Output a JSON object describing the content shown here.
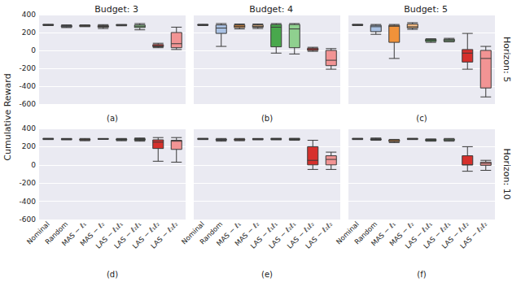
{
  "chart_data": [
    {
      "type": "boxplot",
      "title": "Budget: 3",
      "xlabel": "(a)",
      "ylabel": "Cumulative Reward",
      "categories": [
        "Nominal",
        "Random",
        "MAS − ℓ₁",
        "MAS − ℓ₂",
        "LAS − ℓ₁ℓ₁",
        "LAS − ℓ₂ℓ₁",
        "LAS − ℓ₁ℓ₂",
        "LAS − ℓ₂ℓ₂"
      ],
      "colors": [
        "#7590c2",
        "#a9c1e3",
        "#f0923a",
        "#f5bd86",
        "#49a84c",
        "#8fd08f",
        "#d6302c",
        "#f29494"
      ],
      "values": [
        [
          278,
          282,
          285,
          288,
          292
        ],
        [
          255,
          262,
          270,
          278,
          285
        ],
        [
          265,
          270,
          275,
          280,
          285
        ],
        [
          245,
          258,
          268,
          278,
          288
        ],
        [
          275,
          280,
          283,
          287,
          290
        ],
        [
          230,
          255,
          270,
          285,
          300
        ],
        [
          30,
          40,
          50,
          65,
          80
        ],
        [
          10,
          30,
          75,
          200,
          260
        ]
      ],
      "ylim": [
        -600,
        400
      ],
      "yticks": [
        -600,
        -400,
        -200,
        0,
        200,
        400
      ],
      "grid": true,
      "tick_labels": "y"
    },
    {
      "type": "boxplot",
      "title": "Budget: 4",
      "xlabel": "(b)",
      "categories": [
        "Nominal",
        "Random",
        "MAS − ℓ₁",
        "MAS − ℓ₂",
        "LAS − ℓ₁ℓ₁",
        "LAS − ℓ₂ℓ₁",
        "LAS − ℓ₁ℓ₂",
        "LAS − ℓ₂ℓ₂"
      ],
      "colors": [
        "#7590c2",
        "#a9c1e3",
        "#f0923a",
        "#f5bd86",
        "#49a84c",
        "#8fd08f",
        "#d6302c",
        "#f29494"
      ],
      "values": [
        [
          278,
          282,
          285,
          288,
          292
        ],
        [
          45,
          190,
          250,
          285,
          300
        ],
        [
          240,
          255,
          270,
          285,
          295
        ],
        [
          245,
          258,
          270,
          285,
          295
        ],
        [
          -30,
          40,
          260,
          290,
          300
        ],
        [
          -40,
          30,
          240,
          290,
          300
        ],
        [
          -10,
          0,
          10,
          25,
          35
        ],
        [
          -210,
          -170,
          -110,
          0,
          20
        ]
      ],
      "ylim": [
        -600,
        400
      ],
      "yticks": [
        -600,
        -400,
        -200,
        0,
        200,
        400
      ],
      "grid": true,
      "tick_labels": false
    },
    {
      "type": "boxplot",
      "title": "Budget: 5",
      "xlabel": "(c)",
      "annotation": "Horizon: 5",
      "categories": [
        "Nominal",
        "Random",
        "MAS − ℓ₁",
        "MAS − ℓ₂",
        "LAS − ℓ₁ℓ₁",
        "LAS − ℓ₂ℓ₁",
        "LAS − ℓ₁ℓ₂",
        "LAS − ℓ₂ℓ₂"
      ],
      "colors": [
        "#7590c2",
        "#a9c1e3",
        "#f0923a",
        "#f5bd86",
        "#49a84c",
        "#8fd08f",
        "#d6302c",
        "#f29494"
      ],
      "values": [
        [
          278,
          282,
          285,
          288,
          292
        ],
        [
          180,
          210,
          265,
          280,
          290
        ],
        [
          -90,
          90,
          270,
          280,
          290
        ],
        [
          235,
          250,
          265,
          295,
          310
        ],
        [
          90,
          100,
          115,
          125,
          130
        ],
        [
          95,
          100,
          115,
          125,
          135
        ],
        [
          -210,
          -130,
          -30,
          10,
          190
        ],
        [
          -520,
          -420,
          -90,
          0,
          45
        ]
      ],
      "ylim": [
        -600,
        400
      ],
      "yticks": [
        -600,
        -400,
        -200,
        0,
        200,
        400
      ],
      "grid": true,
      "tick_labels": false
    },
    {
      "type": "boxplot",
      "xlabel": "(d)",
      "categories": [
        "Nominal",
        "Random",
        "MAS − ℓ₁",
        "MAS − ℓ₂",
        "LAS − ℓ₁ℓ₁",
        "LAS − ℓ₂ℓ₁",
        "LAS − ℓ₁ℓ₂",
        "LAS − ℓ₂ℓ₂"
      ],
      "colors": [
        "#7590c2",
        "#a9c1e3",
        "#f0923a",
        "#f5bd86",
        "#49a84c",
        "#8fd08f",
        "#d6302c",
        "#f29494"
      ],
      "values": [
        [
          278,
          282,
          285,
          288,
          292
        ],
        [
          275,
          280,
          283,
          286,
          290
        ],
        [
          265,
          272,
          278,
          283,
          290
        ],
        [
          280,
          283,
          285,
          287,
          290
        ],
        [
          265,
          272,
          280,
          285,
          290
        ],
        [
          260,
          270,
          280,
          288,
          295
        ],
        [
          40,
          180,
          250,
          275,
          300
        ],
        [
          30,
          170,
          260,
          270,
          300
        ]
      ],
      "ylim": [
        -600,
        400
      ],
      "yticks": [
        -600,
        -400,
        -200,
        0,
        200,
        400
      ],
      "grid": true,
      "tick_labels": true
    },
    {
      "type": "boxplot",
      "xlabel": "(e)",
      "categories": [
        "Nominal",
        "Random",
        "MAS − ℓ₁",
        "MAS − ℓ₂",
        "LAS − ℓ₁ℓ₁",
        "LAS − ℓ₂ℓ₁",
        "LAS − ℓ₁ℓ₂",
        "LAS − ℓ₂ℓ₂"
      ],
      "colors": [
        "#7590c2",
        "#a9c1e3",
        "#f0923a",
        "#f5bd86",
        "#49a84c",
        "#8fd08f",
        "#d6302c",
        "#f29494"
      ],
      "values": [
        [
          278,
          282,
          285,
          288,
          292
        ],
        [
          260,
          270,
          278,
          283,
          290
        ],
        [
          265,
          272,
          278,
          283,
          290
        ],
        [
          275,
          280,
          283,
          287,
          290
        ],
        [
          275,
          280,
          285,
          288,
          292
        ],
        [
          270,
          278,
          283,
          287,
          292
        ],
        [
          -50,
          0,
          50,
          200,
          270
        ],
        [
          -50,
          0,
          60,
          100,
          140
        ]
      ],
      "ylim": [
        -600,
        400
      ],
      "yticks": [
        -600,
        -400,
        -200,
        0,
        200,
        400
      ],
      "grid": true,
      "tick_labels": "x"
    },
    {
      "type": "boxplot",
      "xlabel": "(f)",
      "annotation": "Horizon: 10",
      "categories": [
        "Nominal",
        "Random",
        "MAS − ℓ₁",
        "MAS − ℓ₂",
        "LAS − ℓ₁ℓ₁",
        "LAS − ℓ₂ℓ₁",
        "LAS − ℓ₁ℓ₂",
        "LAS − ℓ₂ℓ₂"
      ],
      "colors": [
        "#7590c2",
        "#a9c1e3",
        "#f0923a",
        "#f5bd86",
        "#49a84c",
        "#8fd08f",
        "#d6302c",
        "#f29494"
      ],
      "values": [
        [
          278,
          282,
          285,
          288,
          292
        ],
        [
          270,
          275,
          280,
          287,
          295
        ],
        [
          245,
          255,
          265,
          275,
          280
        ],
        [
          278,
          282,
          285,
          288,
          292
        ],
        [
          260,
          265,
          272,
          280,
          285
        ],
        [
          260,
          268,
          275,
          283,
          290
        ],
        [
          -70,
          0,
          0,
          100,
          200
        ],
        [
          -60,
          -5,
          15,
          30,
          50
        ]
      ],
      "ylim": [
        -600,
        400
      ],
      "yticks": [
        -600,
        -400,
        -200,
        0,
        200,
        400
      ],
      "grid": true,
      "tick_labels": "x"
    }
  ]
}
